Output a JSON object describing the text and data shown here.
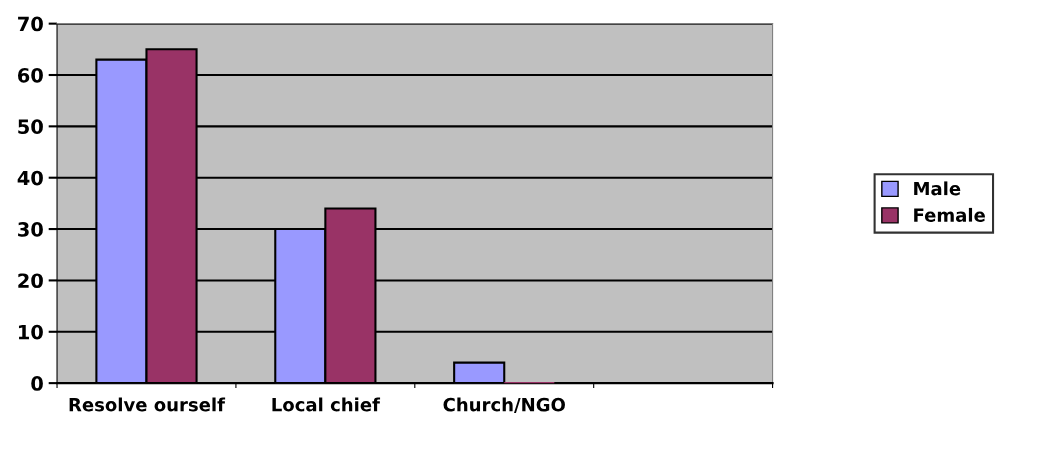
{
  "chart_data": {
    "type": "bar",
    "categories": [
      "Resolve ourself",
      "Local chief",
      "Church/NGO",
      null
    ],
    "series": [
      {
        "name": "Male",
        "color": "#9999ff",
        "values": [
          63,
          30,
          4,
          null
        ]
      },
      {
        "name": "Female",
        "color": "#993366",
        "values": [
          65,
          34,
          0,
          null
        ]
      }
    ],
    "ylim": [
      0,
      70
    ],
    "yticks": [
      0,
      10,
      20,
      30,
      40,
      50,
      60,
      70
    ],
    "grid": "y",
    "legend": "right"
  }
}
